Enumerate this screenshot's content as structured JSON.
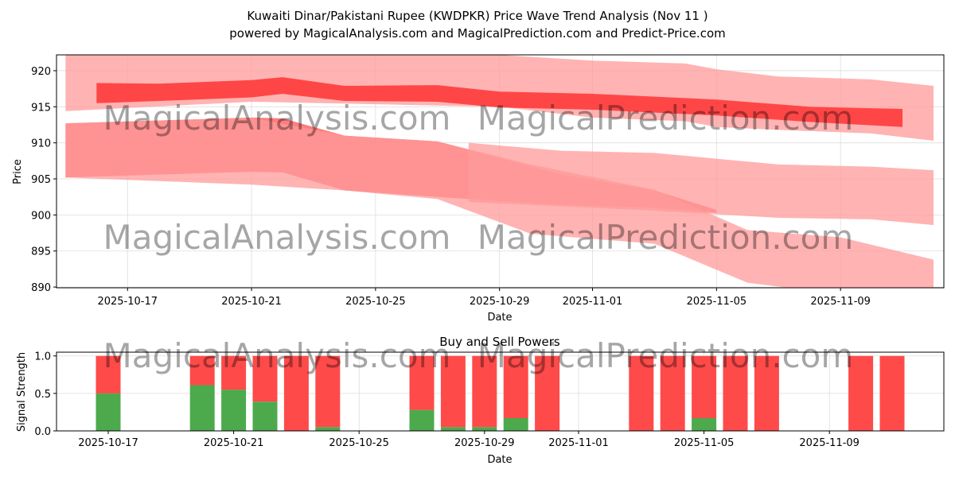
{
  "chart_data": [
    {
      "type": "area",
      "title": "Kuwaiti Dinar/Pakistani Rupee (KWDPKR) Price Wave Trend Analysis (Nov 11 )",
      "subtitle": "powered by MagicalAnalysis.com and MagicalPrediction.com and Predict-Price.com",
      "xlabel": "Date",
      "ylabel": "Price",
      "xlim": [
        "2025-10-14T17:00",
        "2025-11-12T08:00"
      ],
      "ylim": [
        889.9,
        922.2
      ],
      "yticks": [
        890,
        895,
        900,
        905,
        910,
        915,
        920
      ],
      "xticks": [
        "2025-10-17",
        "2025-10-21",
        "2025-10-25",
        "2025-10-29",
        "2025-11-01",
        "2025-11-05",
        "2025-11-09"
      ],
      "grid": true,
      "bands": [
        {
          "name": "upper-wide",
          "color": "#ff9999",
          "opacity": 0.75,
          "dates": [
            "2025-10-15",
            "2025-10-21",
            "2025-10-29",
            "2025-11-01",
            "2025-11-04",
            "2025-11-05",
            "2025-11-07",
            "2025-11-10",
            "2025-11-12"
          ],
          "upper": [
            922.2,
            922.2,
            922.2,
            921.4,
            921.0,
            920.2,
            919.2,
            918.8,
            917.9
          ],
          "lower": [
            914.4,
            915.7,
            915.0,
            913.5,
            913.0,
            912.2,
            911.8,
            911.3,
            910.3
          ]
        },
        {
          "name": "upper-core",
          "color": "#ff3333",
          "opacity": 0.85,
          "dates": [
            "2025-10-16",
            "2025-10-18",
            "2025-10-21",
            "2025-10-22",
            "2025-10-24",
            "2025-10-27",
            "2025-10-29",
            "2025-11-01",
            "2025-11-05",
            "2025-11-08",
            "2025-11-11"
          ],
          "upper": [
            918.3,
            918.2,
            918.7,
            919.1,
            917.9,
            918.0,
            917.1,
            916.8,
            916.0,
            915.0,
            914.7
          ],
          "lower": [
            915.5,
            915.8,
            916.3,
            916.8,
            915.8,
            915.7,
            914.9,
            914.6,
            913.8,
            912.9,
            912.2
          ]
        },
        {
          "name": "lower-core",
          "color": "#ff6666",
          "opacity": 0.85,
          "dates": [
            "2025-10-15",
            "2025-10-21",
            "2025-10-22",
            "2025-10-24",
            "2025-10-27",
            "2025-10-31",
            "2025-11-03",
            "2025-11-05"
          ],
          "upper": [
            912.7,
            913.5,
            913.4,
            911.0,
            910.2,
            905.6,
            903.4,
            900.7
          ],
          "lower": [
            905.2,
            906.0,
            905.9,
            903.4,
            902.5,
            901.4,
            901.0,
            900.3
          ]
        },
        {
          "name": "lower-wide",
          "color": "#ff9999",
          "opacity": 0.75,
          "dates": [
            "2025-10-15",
            "2025-10-21",
            "2025-10-24",
            "2025-10-27",
            "2025-10-30",
            "2025-11-03",
            "2025-11-06",
            "2025-11-09",
            "2025-11-12"
          ],
          "upper": [
            912.7,
            913.5,
            911.0,
            910.2,
            907.0,
            903.5,
            897.9,
            896.9,
            893.8
          ],
          "lower": [
            905.2,
            904.2,
            903.4,
            902.2,
            897.4,
            896.0,
            890.6,
            889.0,
            889.0
          ]
        },
        {
          "name": "middle-wide",
          "color": "#ff9999",
          "opacity": 0.75,
          "dates": [
            "2025-10-28",
            "2025-10-31",
            "2025-11-03",
            "2025-11-07",
            "2025-11-10",
            "2025-11-12"
          ],
          "upper": [
            910.0,
            908.9,
            908.6,
            907.0,
            906.7,
            906.2
          ],
          "lower": [
            901.8,
            901.2,
            900.6,
            899.6,
            899.4,
            898.6
          ]
        }
      ]
    },
    {
      "type": "bar",
      "title": "Buy and Sell Powers",
      "xlabel": "Date",
      "ylabel": "Signal Strength",
      "ylim": [
        0,
        1.05
      ],
      "yticks": [
        "0.0",
        "0.5",
        "1.0"
      ],
      "xticks": [
        "2025-10-17",
        "2025-10-21",
        "2025-10-25",
        "2025-10-29",
        "2025-11-01",
        "2025-11-05",
        "2025-11-09"
      ],
      "categories": [
        "2025-10-17",
        "2025-10-20",
        "2025-10-21",
        "2025-10-22",
        "2025-10-23",
        "2025-10-24",
        "2025-10-27",
        "2025-10-28",
        "2025-10-29",
        "2025-10-30",
        "2025-10-31",
        "2025-11-03",
        "2025-11-04",
        "2025-11-05",
        "2025-11-06",
        "2025-11-07",
        "2025-11-10",
        "2025-11-11"
      ],
      "series": [
        {
          "name": "Buy",
          "color": "#4caa4c",
          "values": [
            0.5,
            0.61,
            0.55,
            0.39,
            0,
            0.05,
            0.28,
            0.05,
            0.05,
            0.17,
            0,
            0,
            0,
            0.17,
            0,
            0,
            0,
            0
          ]
        },
        {
          "name": "Sell",
          "color": "#ff4a4a",
          "values": [
            0.5,
            0.39,
            0.45,
            0.61,
            1,
            0.95,
            0.72,
            0.95,
            0.95,
            0.83,
            1,
            1,
            1,
            0.83,
            1,
            1,
            1,
            1
          ]
        }
      ]
    }
  ],
  "watermarks": [
    "MagicalAnalysis.com",
    "MagicalPrediction.com"
  ]
}
